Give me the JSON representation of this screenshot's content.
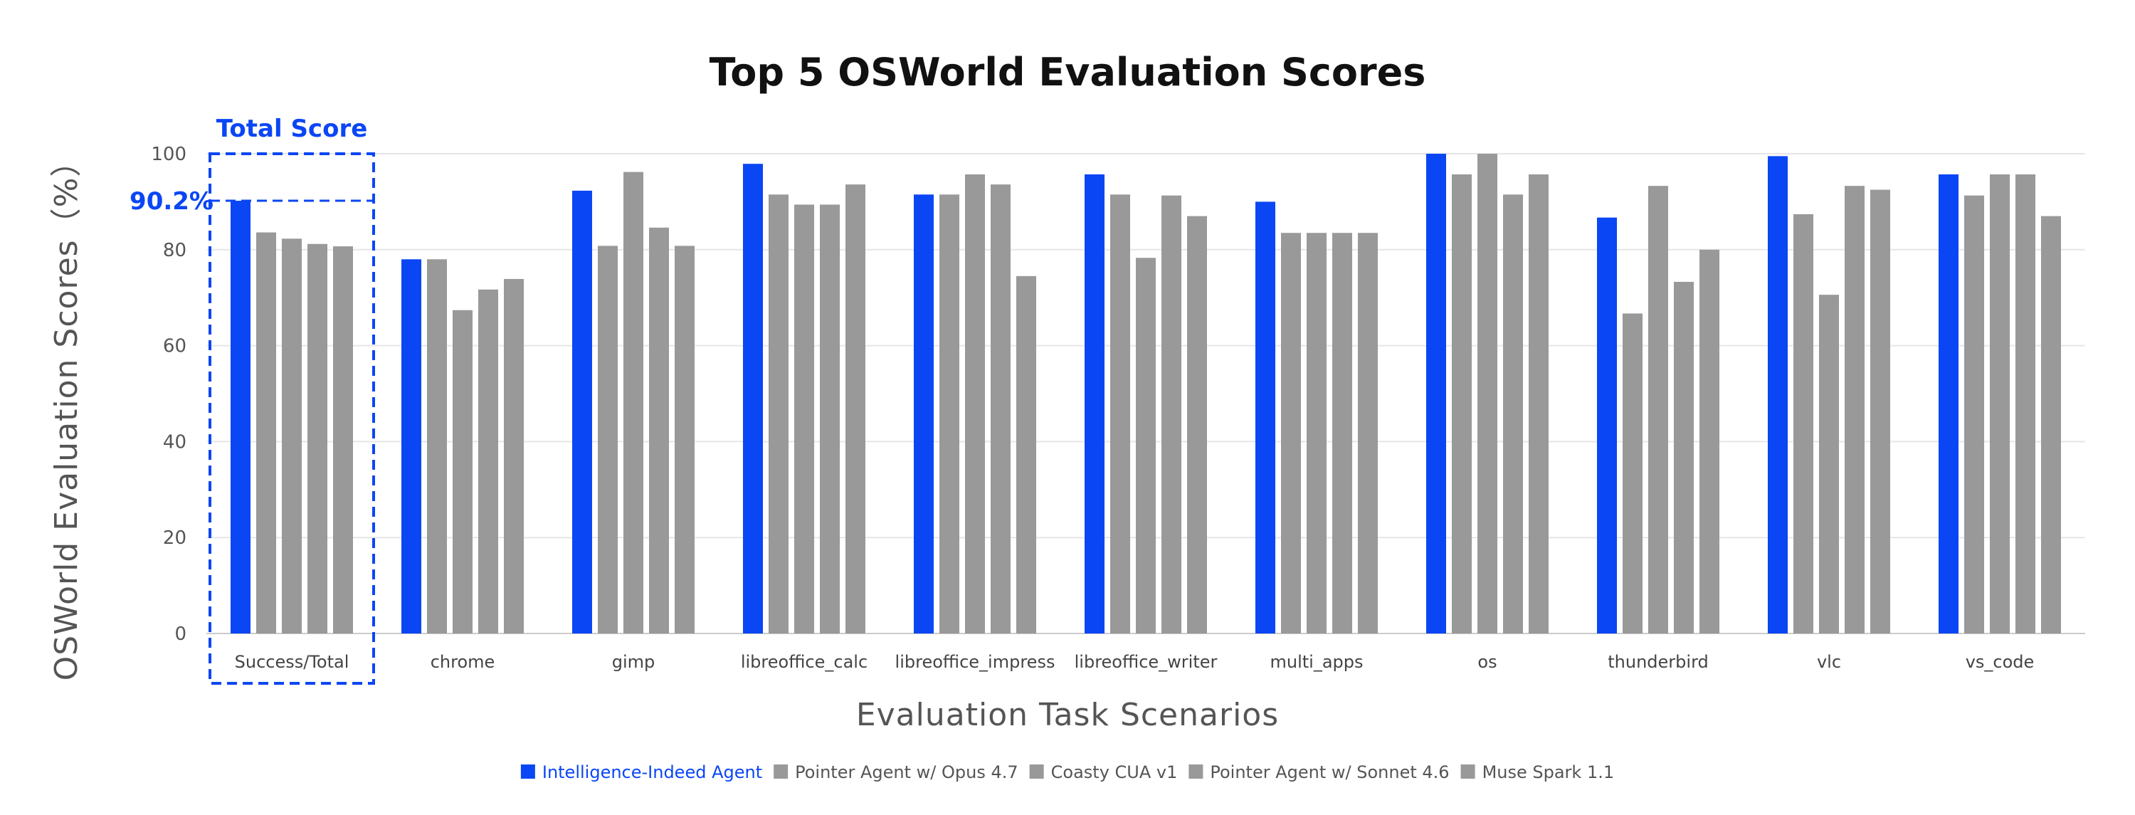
{
  "chart_data": {
    "type": "bar",
    "title": "Top 5 OSWorld Evaluation Scores",
    "xlabel": "Evaluation Task Scenarios",
    "ylabel": "OSWorld Evaluation Scores（%）",
    "ylim": [
      0,
      100
    ],
    "yticks": [
      "0",
      "20",
      "40",
      "60",
      "80",
      "100"
    ],
    "grid": true,
    "legend_position": "bottom",
    "categories": [
      "Success/Total",
      "chrome",
      "gimp",
      "libreoffice_calc",
      "libreoffice_impress",
      "libreoffice_writer",
      "multi_apps",
      "os",
      "thunderbird",
      "vlc",
      "vs_code"
    ],
    "series": [
      {
        "name": "Intelligence-Indeed Agent",
        "color": "#0b46f5",
        "values": [
          90.2,
          78,
          92.3,
          97.9,
          91.5,
          95.7,
          90,
          100,
          86.7,
          99.5,
          95.7
        ]
      },
      {
        "name": "Pointer Agent w/ Opus 4.7",
        "color": "#999999",
        "values": [
          83.6,
          78,
          80.8,
          91.5,
          91.5,
          91.5,
          83.5,
          95.7,
          66.7,
          87.4,
          91.3
        ]
      },
      {
        "name": "Coasty CUA v1",
        "color": "#999999",
        "values": [
          82.3,
          67.4,
          96.2,
          89.4,
          95.7,
          78.3,
          83.5,
          100,
          93.3,
          70.6,
          95.7
        ]
      },
      {
        "name": "Pointer Agent w/ Sonnet 4.6",
        "color": "#999999",
        "values": [
          81.2,
          71.7,
          84.6,
          89.4,
          93.6,
          91.3,
          83.5,
          91.5,
          73.3,
          93.3,
          95.7
        ]
      },
      {
        "name": "Muse Spark 1.1",
        "color": "#999999",
        "values": [
          80.7,
          73.9,
          80.8,
          93.6,
          74.5,
          87,
          83.5,
          95.7,
          80,
          92.5,
          87
        ]
      }
    ],
    "annotations": {
      "highlight_label": "Total Score",
      "highlight_value_label": "90.2%",
      "highlight_category": "Success/Total"
    }
  }
}
